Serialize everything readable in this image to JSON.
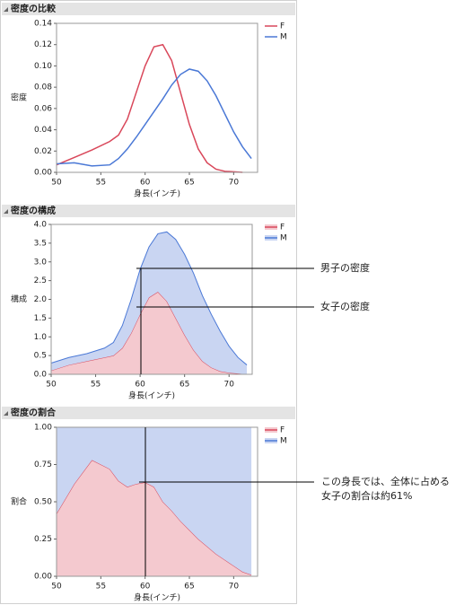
{
  "chart_data": [
    {
      "type": "line",
      "title": "密度の比較",
      "xlabel": "身長(インチ)",
      "ylabel": "密度",
      "x": [
        50,
        52,
        54,
        56,
        57,
        58,
        59,
        60,
        61,
        62,
        63,
        64,
        65,
        66,
        67,
        68,
        69,
        70,
        71,
        72
      ],
      "series": [
        {
          "name": "F",
          "color": "#d9475a",
          "values": [
            0.007,
            0.014,
            0.021,
            0.029,
            0.035,
            0.05,
            0.075,
            0.1,
            0.118,
            0.12,
            0.105,
            0.075,
            0.045,
            0.022,
            0.009,
            0.003,
            0.001,
            0.0005,
            0,
            null
          ]
        },
        {
          "name": "M",
          "color": "#4a78d6",
          "values": [
            0.008,
            0.009,
            0.006,
            0.007,
            0.013,
            0.022,
            0.033,
            0.045,
            0.057,
            0.069,
            0.082,
            0.092,
            0.097,
            0.095,
            0.086,
            0.072,
            0.055,
            0.038,
            0.024,
            0.013
          ]
        }
      ],
      "xlim": [
        50,
        72.7
      ],
      "xticks": [
        50,
        55,
        60,
        65,
        70
      ],
      "ylim": [
        0,
        0.14
      ],
      "yticks": [
        {
          "value": 0,
          "label": "0.00"
        },
        {
          "value": 0.02,
          "label": "0.02"
        },
        {
          "value": 0.04,
          "label": "0.04"
        },
        {
          "value": 0.06,
          "label": "0.06"
        },
        {
          "value": 0.08,
          "label": "0.08"
        },
        {
          "value": 0.1,
          "label": "0.10"
        },
        {
          "value": 0.12,
          "label": "0.12"
        },
        {
          "value": 0.14,
          "label": "0.14"
        }
      ]
    },
    {
      "type": "stacked_area",
      "title": "密度の構成",
      "xlabel": "身長(インチ)",
      "ylabel": "構成",
      "x": [
        50,
        52,
        54,
        56,
        57,
        58,
        59,
        60,
        61,
        62,
        63,
        64,
        65,
        66,
        67,
        68,
        69,
        70,
        71,
        72
      ],
      "series": [
        {
          "name": "F",
          "color": "#d9475a",
          "fill": "#f4c9cf",
          "values": [
            0.1,
            0.25,
            0.35,
            0.45,
            0.5,
            0.7,
            1.1,
            1.6,
            2.05,
            2.2,
            1.95,
            1.5,
            1.05,
            0.65,
            0.35,
            0.18,
            0.08,
            0.04,
            0.02,
            0
          ]
        },
        {
          "name": "M",
          "color": "#4a78d6",
          "fill": "#c9d5f2",
          "values": [
            0.2,
            0.2,
            0.2,
            0.25,
            0.35,
            0.6,
            0.9,
            1.2,
            1.35,
            1.55,
            1.85,
            2.1,
            2.15,
            2.05,
            1.75,
            1.42,
            1.07,
            0.71,
            0.43,
            0.25
          ]
        }
      ],
      "xlim": [
        50,
        72.6
      ],
      "xticks": [
        50,
        55,
        60,
        65,
        70
      ],
      "ylim": [
        0,
        4
      ],
      "yticks": [
        {
          "value": 0,
          "label": "0.0"
        },
        {
          "value": 0.5,
          "label": "0.5"
        },
        {
          "value": 1,
          "label": "1.0"
        },
        {
          "value": 1.5,
          "label": "1.5"
        },
        {
          "value": 2,
          "label": "2.0"
        },
        {
          "value": 2.5,
          "label": "2.5"
        },
        {
          "value": 3,
          "label": "3.0"
        },
        {
          "value": 3.5,
          "label": "3.5"
        },
        {
          "value": 4,
          "label": "4.0"
        }
      ],
      "annotations": [
        "男子の密度",
        "女子の密度"
      ]
    },
    {
      "type": "stacked_area",
      "title": "密度の割合",
      "xlabel": "身長(インチ)",
      "ylabel": "割合",
      "x": [
        50,
        52,
        54,
        56,
        57,
        58,
        59,
        60,
        61,
        62,
        63,
        64,
        65,
        66,
        67,
        68,
        69,
        70,
        71,
        72
      ],
      "series": [
        {
          "name": "F",
          "color": "#d9475a",
          "fill": "#f4c9cf",
          "values": [
            0.42,
            0.62,
            0.78,
            0.72,
            0.64,
            0.6,
            0.62,
            0.63,
            0.6,
            0.5,
            0.44,
            0.37,
            0.31,
            0.25,
            0.2,
            0.15,
            0.11,
            0.07,
            0.03,
            0.01
          ]
        },
        {
          "name": "M",
          "color": "#4a78d6",
          "fill": "#c9d5f2",
          "values": [
            0.58,
            0.38,
            0.22,
            0.28,
            0.36,
            0.4,
            0.38,
            0.37,
            0.4,
            0.5,
            0.56,
            0.63,
            0.69,
            0.75,
            0.8,
            0.85,
            0.89,
            0.93,
            0.97,
            0.99
          ]
        }
      ],
      "xlim": [
        50,
        72.7
      ],
      "xticks": [
        50,
        55,
        60,
        65,
        70
      ],
      "ylim": [
        0,
        1
      ],
      "yticks": [
        {
          "value": 0,
          "label": "0.00"
        },
        {
          "value": 0.25,
          "label": "0.25"
        },
        {
          "value": 0.5,
          "label": "0.50"
        },
        {
          "value": 0.75,
          "label": "0.75"
        },
        {
          "value": 1,
          "label": "1.00"
        }
      ],
      "annotations": [
        "この身長では、全体に占める",
        "女子の割合は約61%"
      ]
    }
  ]
}
